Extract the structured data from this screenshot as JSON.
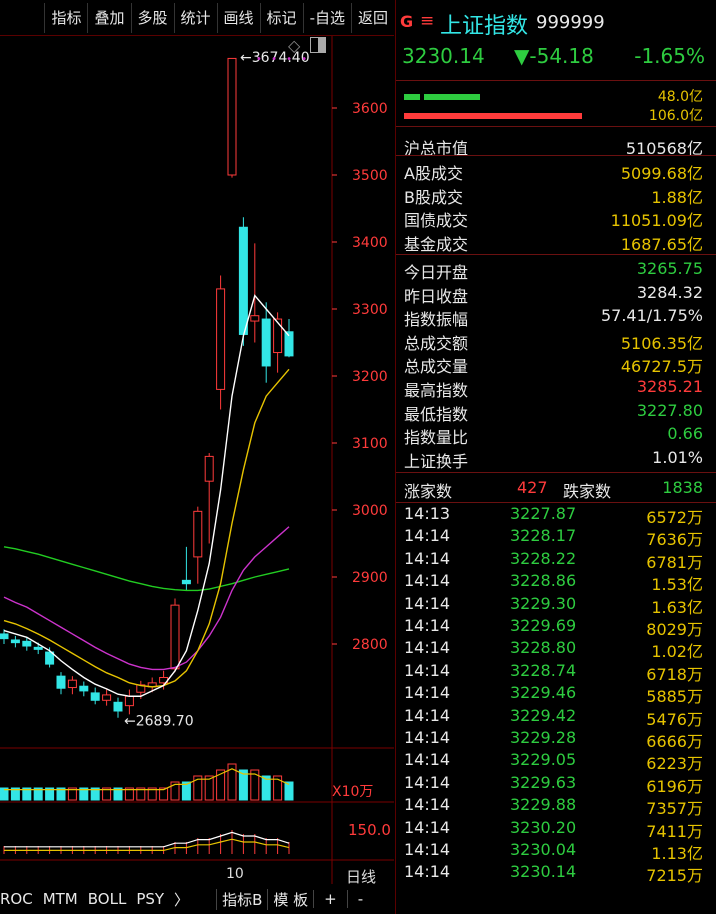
{
  "toolbar": {
    "items": [
      "指标",
      "叠加",
      "多股",
      "统计",
      "画线",
      "标记",
      "-自选",
      "返回"
    ]
  },
  "chart": {
    "price_axis": [
      "3600",
      "3500",
      "3400",
      "3300",
      "3200",
      "3100",
      "3000",
      "2900",
      "2800"
    ],
    "high_annotation": "3674.40",
    "low_annotation": "2689.70",
    "volume_unit": "X10万",
    "indicator_value": "150.0",
    "date_label": "10",
    "period_label": "日线",
    "bottom_tabs": [
      "ROC",
      "MTM",
      "BOLL",
      "PSY",
      "〉",
      "指标B",
      "模 板",
      "+",
      "-"
    ]
  },
  "quote": {
    "g_mark": "G",
    "menu_icon": "≡",
    "name": "上证指数",
    "code": "999999",
    "price": "3230.14",
    "change": "▼-54.18",
    "change_pct": "-1.65%",
    "buy_amount": "48.0亿",
    "sell_amount": "106.0亿"
  },
  "stats1": [
    {
      "k": "沪总市值",
      "v": "510568亿",
      "c": "#e8e8e8"
    }
  ],
  "stats2": [
    {
      "k": "A股成交",
      "v": "5099.68亿",
      "c": "#e6c300"
    },
    {
      "k": "B股成交",
      "v": "1.88亿",
      "c": "#e6c300"
    },
    {
      "k": "国债成交",
      "v": "11051.09亿",
      "c": "#e6c300"
    },
    {
      "k": "基金成交",
      "v": "1687.65亿",
      "c": "#e6c300"
    }
  ],
  "stats3": [
    {
      "k": "今日开盘",
      "v": "3265.75",
      "c": "#2ecc40"
    },
    {
      "k": "昨日收盘",
      "v": "3284.32",
      "c": "#e8e8e8"
    },
    {
      "k": "指数振幅",
      "v": "57.41/1.75%",
      "c": "#e8e8e8"
    },
    {
      "k": "总成交额",
      "v": "5106.35亿",
      "c": "#e6c300"
    },
    {
      "k": "总成交量",
      "v": "46727.5万",
      "c": "#e6c300"
    },
    {
      "k": "最高指数",
      "v": "3285.21",
      "c": "#ff3b3b"
    },
    {
      "k": "最低指数",
      "v": "3227.80",
      "c": "#2ecc40"
    },
    {
      "k": "指数量比",
      "v": "0.66",
      "c": "#2ecc40"
    },
    {
      "k": "上证换手",
      "v": "1.01%",
      "c": "#e8e8e8"
    }
  ],
  "breadth": {
    "up_label": "涨家数",
    "up": "427",
    "down_label": "跌家数",
    "down": "1838"
  },
  "ticks": [
    {
      "t": "14:13",
      "p": "3227.87",
      "v": "6572万"
    },
    {
      "t": "14:14",
      "p": "3228.17",
      "v": "7636万"
    },
    {
      "t": "14:14",
      "p": "3228.22",
      "v": "6781万"
    },
    {
      "t": "14:14",
      "p": "3228.86",
      "v": "1.53亿"
    },
    {
      "t": "14:14",
      "p": "3229.30",
      "v": "1.63亿"
    },
    {
      "t": "14:14",
      "p": "3229.69",
      "v": "8029万"
    },
    {
      "t": "14:14",
      "p": "3228.80",
      "v": "1.02亿"
    },
    {
      "t": "14:14",
      "p": "3228.74",
      "v": "6718万"
    },
    {
      "t": "14:14",
      "p": "3229.46",
      "v": "5885万"
    },
    {
      "t": "14:14",
      "p": "3229.42",
      "v": "5476万"
    },
    {
      "t": "14:14",
      "p": "3229.28",
      "v": "6666万"
    },
    {
      "t": "14:14",
      "p": "3229.05",
      "v": "6223万"
    },
    {
      "t": "14:14",
      "p": "3229.63",
      "v": "6196万"
    },
    {
      "t": "14:14",
      "p": "3229.88",
      "v": "7357万"
    },
    {
      "t": "14:14",
      "p": "3230.20",
      "v": "7411万"
    },
    {
      "t": "14:14",
      "p": "3230.04",
      "v": "1.13亿"
    },
    {
      "t": "14:14",
      "p": "3230.14",
      "v": "7215万"
    }
  ],
  "colors": {
    "up": "#ff3b3b",
    "down": "#33e6e6",
    "ma5": "#ffffff",
    "ma10": "#e6c300",
    "ma20": "#cc33cc",
    "ma60": "#22cc22"
  },
  "candles": [
    {
      "o": 2815,
      "c": 2808,
      "h": 2822,
      "l": 2800
    },
    {
      "o": 2806,
      "c": 2802,
      "h": 2812,
      "l": 2795
    },
    {
      "o": 2804,
      "c": 2797,
      "h": 2810,
      "l": 2790
    },
    {
      "o": 2795,
      "c": 2792,
      "h": 2802,
      "l": 2785
    },
    {
      "o": 2788,
      "c": 2770,
      "h": 2795,
      "l": 2765
    },
    {
      "o": 2752,
      "c": 2734,
      "h": 2758,
      "l": 2725
    },
    {
      "o": 2735,
      "c": 2746,
      "h": 2752,
      "l": 2725
    },
    {
      "o": 2737,
      "c": 2730,
      "h": 2744,
      "l": 2722
    },
    {
      "o": 2727,
      "c": 2716,
      "h": 2735,
      "l": 2710
    },
    {
      "o": 2716,
      "c": 2724,
      "h": 2732,
      "l": 2708
    },
    {
      "o": 2713,
      "c": 2700,
      "h": 2720,
      "l": 2690
    },
    {
      "o": 2708,
      "c": 2722,
      "h": 2732,
      "l": 2695
    },
    {
      "o": 2728,
      "c": 2739,
      "h": 2745,
      "l": 2718
    },
    {
      "o": 2736,
      "c": 2742,
      "h": 2750,
      "l": 2728
    },
    {
      "o": 2742,
      "c": 2750,
      "h": 2760,
      "l": 2732
    },
    {
      "o": 2763,
      "c": 2858,
      "h": 2868,
      "l": 2758
    },
    {
      "o": 2895,
      "c": 2890,
      "h": 2945,
      "l": 2880
    },
    {
      "o": 2930,
      "c": 2998,
      "h": 3005,
      "l": 2890
    },
    {
      "o": 3043,
      "c": 3080,
      "h": 3085,
      "l": 2950
    },
    {
      "o": 3180,
      "c": 3330,
      "h": 3350,
      "l": 3150
    },
    {
      "o": 3500,
      "c": 3674,
      "h": 3674.4,
      "l": 3496
    },
    {
      "o": 3422,
      "c": 3262,
      "h": 3437,
      "l": 3245
    },
    {
      "o": 3282,
      "c": 3290,
      "h": 3398,
      "l": 3250
    },
    {
      "o": 3285,
      "c": 3215,
      "h": 3310,
      "l": 3190
    },
    {
      "o": 3235,
      "c": 3285,
      "h": 3295,
      "l": 3205
    },
    {
      "o": 3266,
      "c": 3230,
      "h": 3285,
      "l": 3228
    }
  ],
  "volumes": [
    2,
    2,
    2,
    2,
    2,
    2,
    2,
    2,
    2,
    2,
    2,
    2,
    2,
    2,
    2,
    3,
    3,
    4,
    4,
    5,
    6,
    5,
    5,
    4,
    4,
    3
  ],
  "ma5": [
    2820,
    2815,
    2810,
    2800,
    2790,
    2775,
    2762,
    2750,
    2740,
    2733,
    2725,
    2722,
    2722,
    2730,
    2738,
    2760,
    2790,
    2850,
    2920,
    3030,
    3170,
    3260,
    3320,
    3300,
    3280,
    3260
  ],
  "ma10": [
    2835,
    2830,
    2823,
    2815,
    2806,
    2796,
    2786,
    2776,
    2766,
    2757,
    2750,
    2742,
    2738,
    2736,
    2738,
    2745,
    2760,
    2790,
    2830,
    2890,
    2980,
    3060,
    3130,
    3170,
    3190,
    3210
  ],
  "ma20": [
    2870,
    2862,
    2855,
    2845,
    2835,
    2825,
    2815,
    2805,
    2795,
    2786,
    2778,
    2770,
    2765,
    2762,
    2762,
    2765,
    2773,
    2790,
    2812,
    2840,
    2880,
    2910,
    2930,
    2945,
    2960,
    2975
  ],
  "ma60": [
    2945,
    2942,
    2938,
    2934,
    2929,
    2924,
    2919,
    2914,
    2909,
    2904,
    2899,
    2894,
    2890,
    2886,
    2883,
    2881,
    2880,
    2880,
    2882,
    2886,
    2890,
    2895,
    2900,
    2904,
    2908,
    2912
  ]
}
